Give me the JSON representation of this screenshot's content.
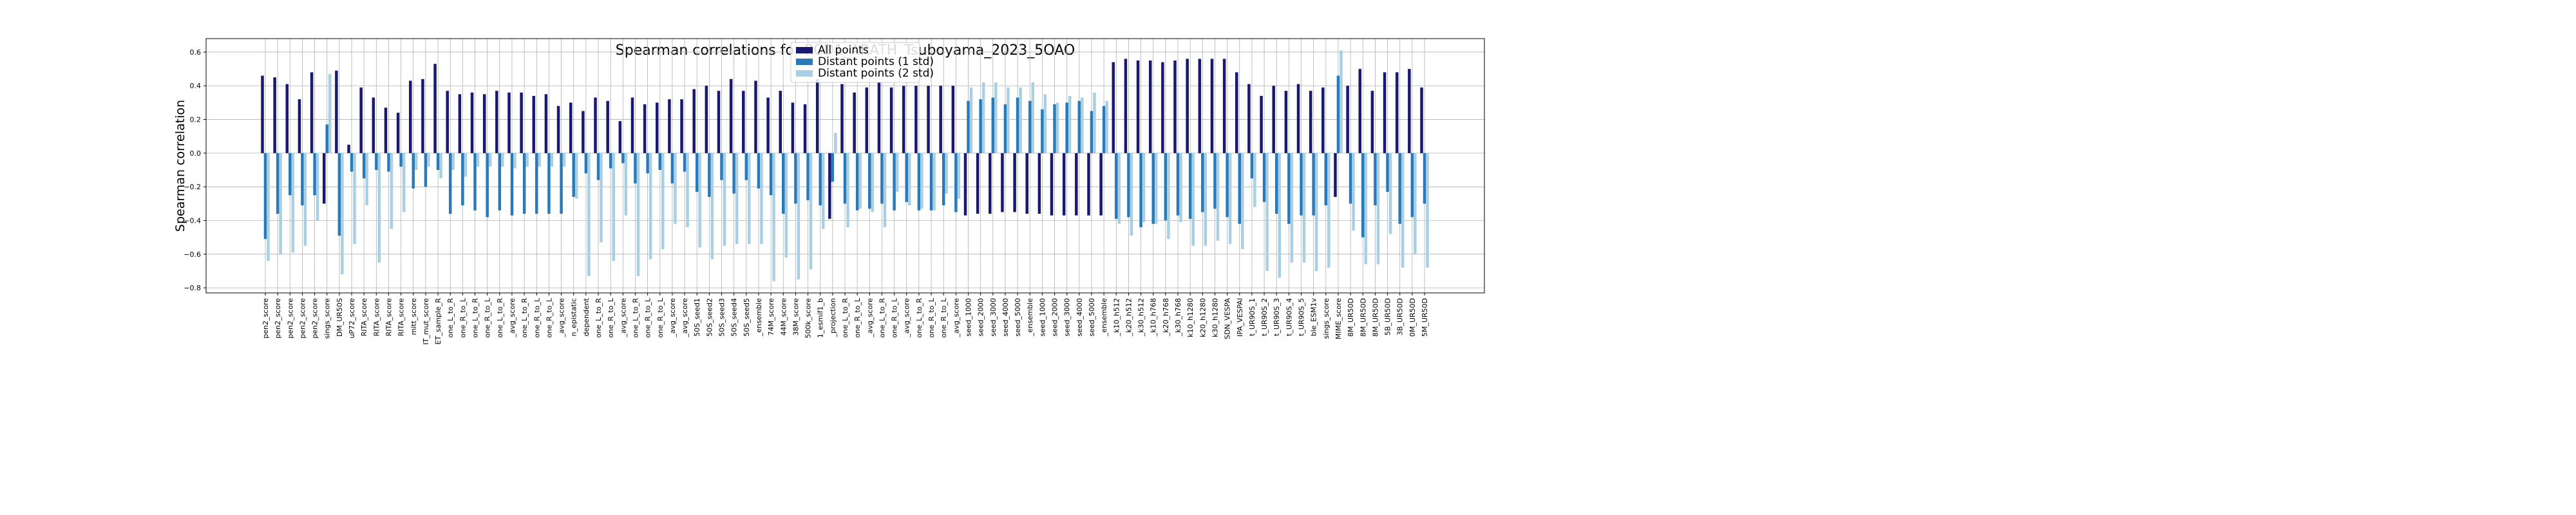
{
  "chart_data": {
    "type": "bar",
    "title": "Spearman correlations for RCD1_ARATH_Tsuboyama_2023_5OAO",
    "xlabel": "",
    "ylabel": "Spearman correlation",
    "ylim": [
      -0.83,
      0.68
    ],
    "yticks": [
      "−0.8",
      "−0.6",
      "−0.4",
      "−0.2",
      "0.0",
      "0.2",
      "0.4",
      "0.6"
    ],
    "ytick_values": [
      -0.8,
      -0.6,
      -0.4,
      -0.2,
      0.0,
      0.2,
      0.4,
      0.6
    ],
    "grid": true,
    "legend_position": "top-center",
    "colors": [
      "#191970",
      "#2a7ab9",
      "#a8cfe4"
    ],
    "categories": [
      "pen2_score",
      "pen2_score",
      "pen2_score",
      "pen2_score",
      "pen2_score",
      "sings_score",
      "DM_UR50S",
      "uP72_score",
      "RITA_score",
      "RITA_score",
      "RITA_score",
      "RITA_score",
      "mitt_score",
      "IT_mut_score",
      "ET_sample_R",
      "one_L_to_R",
      "one_R_to_L",
      "one_L_to_R",
      "one_R_to_L",
      "one_L_to_R",
      "_avg_score",
      "one_L_to_R",
      "one_R_to_L",
      "one_R_to_L",
      "_avg_score",
      "n_epistatic",
      "dependent",
      "one_L_to_R",
      "one_R_to_L",
      "_avg_score",
      "one_L_to_R",
      "one_R_to_L",
      "one_R_to_L",
      "_avg_score",
      "_avg_score",
      "50S_seed1",
      "50S_seed2",
      "50S_seed3",
      "50S_seed4",
      "50S_seed5",
      "_ensemble",
      "74M_score",
      "44M_score",
      "38M_score",
      "500k_score",
      "1_esmif1_b",
      "_projection",
      "one_L_to_R",
      "one_R_to_L",
      "_avg_score",
      "one_L_to_R",
      "one_R_to_L",
      "_avg_score",
      "one_L_to_R",
      "one_R_to_L",
      "one_R_to_L",
      "_avg_score",
      "seed_1000",
      "seed_2000",
      "seed_3000",
      "seed_4000",
      "seed_5000",
      "_ensemble",
      "seed_1000",
      "seed_2000",
      "seed_3000",
      "seed_4000",
      "seed_5000",
      "_ensemble",
      "_k10_h512",
      "_k20_h512",
      "_k30_h512",
      "_k10_h768",
      "_k20_h768",
      "_k30_h768",
      "k10_h1280",
      "k20_h1280",
      "k30_h1280",
      "SDN_VESPA",
      "IPA_VESPAl",
      "t_UR90S_1",
      "t_UR90S_2",
      "t_UR90S_3",
      "t_UR90S_4",
      "t_UR90S_5",
      "ble_ESM1v",
      "sings_score",
      "MIME_score",
      "8M_UR50D",
      "8M_UR50D",
      "8M_UR50D",
      "5B_UR50D",
      "3B_UR50D",
      "0M_UR50D",
      "5M_UR50D"
    ],
    "series": [
      {
        "name": "All points",
        "values": [
          0.46,
          0.45,
          0.41,
          0.32,
          0.48,
          -0.3,
          0.49,
          0.05,
          0.39,
          0.33,
          0.27,
          0.24,
          0.43,
          0.44,
          0.53,
          0.37,
          0.35,
          0.36,
          0.35,
          0.37,
          0.36,
          0.36,
          0.34,
          0.35,
          0.28,
          0.3,
          0.25,
          0.33,
          0.31,
          0.19,
          0.33,
          0.29,
          0.3,
          0.32,
          0.32,
          0.38,
          0.4,
          0.37,
          0.44,
          0.37,
          0.43,
          0.33,
          0.37,
          0.3,
          0.29,
          0.44,
          -0.39,
          0.41,
          0.36,
          0.39,
          0.42,
          0.39,
          0.4,
          0.4,
          0.4,
          0.4,
          0.4,
          -0.37,
          -0.36,
          -0.36,
          -0.35,
          -0.35,
          -0.36,
          -0.36,
          -0.37,
          -0.37,
          -0.37,
          -0.37,
          -0.37,
          0.54,
          0.56,
          0.55,
          0.55,
          0.54,
          0.55,
          0.56,
          0.56,
          0.56,
          0.56,
          0.48,
          0.41,
          0.34,
          0.4,
          0.37,
          0.41,
          0.37,
          0.39,
          -0.26,
          0.4,
          0.5,
          0.37,
          0.48,
          0.48,
          0.5,
          0.39
        ]
      },
      {
        "name": "Distant points (1 std)",
        "values": [
          -0.51,
          -0.36,
          -0.25,
          -0.31,
          -0.25,
          0.17,
          -0.49,
          -0.11,
          -0.15,
          -0.1,
          -0.11,
          -0.08,
          -0.21,
          -0.2,
          -0.1,
          -0.36,
          -0.31,
          -0.34,
          -0.38,
          -0.34,
          -0.37,
          -0.36,
          -0.36,
          -0.36,
          -0.36,
          -0.26,
          -0.12,
          -0.16,
          -0.09,
          -0.06,
          -0.18,
          -0.12,
          -0.1,
          -0.18,
          -0.11,
          -0.23,
          -0.26,
          -0.16,
          -0.24,
          -0.16,
          -0.21,
          -0.25,
          -0.36,
          -0.3,
          -0.28,
          -0.31,
          -0.17,
          -0.3,
          -0.34,
          -0.33,
          -0.3,
          -0.34,
          -0.29,
          -0.34,
          -0.34,
          -0.31,
          -0.35,
          0.31,
          0.32,
          0.33,
          0.29,
          0.33,
          0.31,
          0.26,
          0.29,
          0.3,
          0.31,
          0.25,
          0.28,
          -0.39,
          -0.38,
          -0.44,
          -0.42,
          -0.4,
          -0.37,
          -0.39,
          -0.35,
          -0.33,
          -0.38,
          -0.42,
          -0.15,
          -0.29,
          -0.36,
          -0.42,
          -0.37,
          -0.37,
          -0.31,
          0.46,
          -0.3,
          -0.5,
          -0.31,
          -0.23,
          -0.42,
          -0.38,
          -0.3
        ]
      },
      {
        "name": "Distant points (2 std)",
        "values": [
          -0.64,
          -0.6,
          -0.59,
          -0.55,
          -0.4,
          0.47,
          -0.72,
          -0.54,
          -0.31,
          -0.65,
          -0.45,
          -0.35,
          -0.1,
          -0.08,
          -0.15,
          -0.1,
          -0.14,
          -0.08,
          -0.08,
          -0.08,
          -0.09,
          -0.08,
          -0.08,
          -0.08,
          -0.08,
          -0.27,
          -0.73,
          -0.53,
          -0.64,
          -0.37,
          -0.73,
          -0.63,
          -0.57,
          -0.42,
          -0.44,
          -0.56,
          -0.63,
          -0.55,
          -0.54,
          -0.54,
          -0.54,
          -0.76,
          -0.62,
          -0.75,
          -0.69,
          -0.45,
          0.12,
          -0.44,
          -0.33,
          -0.35,
          -0.44,
          -0.23,
          -0.31,
          -0.33,
          -0.34,
          -0.24,
          -0.27,
          0.39,
          0.42,
          0.42,
          0.39,
          0.39,
          0.42,
          0.35,
          0.3,
          0.34,
          0.33,
          0.36,
          0.31,
          -0.42,
          -0.49,
          -0.41,
          -0.42,
          -0.51,
          -0.41,
          -0.55,
          -0.55,
          -0.52,
          -0.54,
          -0.57,
          -0.32,
          -0.7,
          -0.74,
          -0.65,
          -0.65,
          -0.7,
          -0.68,
          0.61,
          -0.46,
          -0.66,
          -0.66,
          -0.48,
          -0.68,
          -0.6,
          -0.68
        ]
      }
    ]
  }
}
